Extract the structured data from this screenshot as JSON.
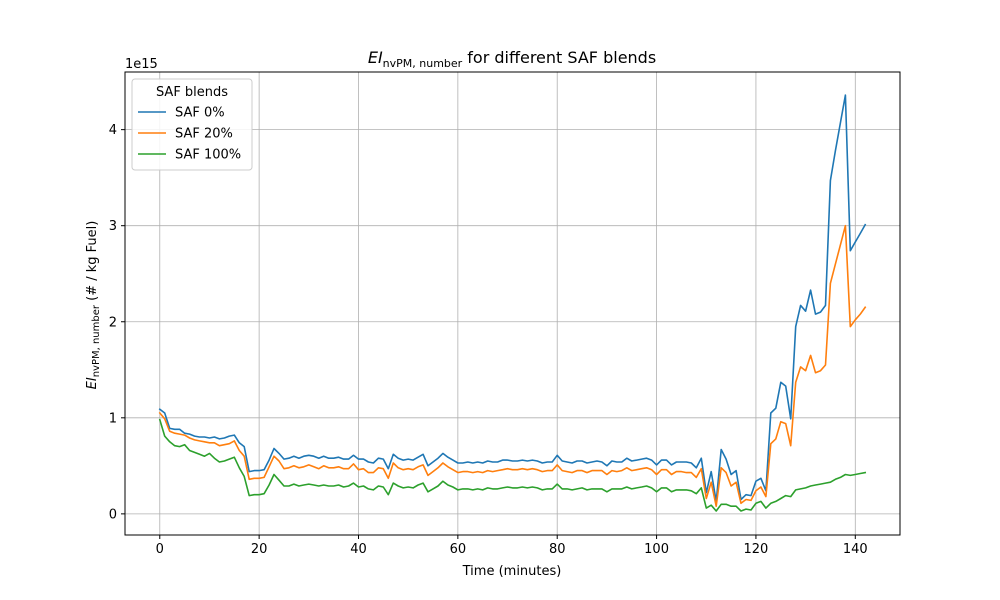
{
  "chart_data": {
    "type": "line",
    "title_main": "EI",
    "title_sub": "nvPM, number",
    "title_rest": " for different SAF blends",
    "xlabel": "Time (minutes)",
    "ylabel_main": "EI",
    "ylabel_sub": "nvPM, number",
    "ylabel_rest": " (# / kg Fuel)",
    "offset_text": "1e15",
    "xlim": [
      -7,
      149
    ],
    "ylim": [
      -0.22,
      4.6
    ],
    "x_ticks": [
      0,
      20,
      40,
      60,
      80,
      100,
      120,
      140
    ],
    "x_tick_labels": [
      "0",
      "20",
      "40",
      "60",
      "80",
      "100",
      "120",
      "140"
    ],
    "y_ticks": [
      0,
      1,
      2,
      3,
      4
    ],
    "y_tick_labels": [
      "0",
      "1",
      "2",
      "3",
      "4"
    ],
    "grid": true,
    "legend": {
      "title": "SAF blends",
      "placement": "upper-left"
    },
    "x": [
      0,
      1,
      2,
      3,
      4,
      5,
      6,
      7,
      8,
      9,
      10,
      11,
      12,
      13,
      14,
      15,
      16,
      17,
      18,
      19,
      20,
      21,
      22,
      23,
      24,
      25,
      26,
      27,
      28,
      29,
      30,
      31,
      32,
      33,
      34,
      35,
      36,
      37,
      38,
      39,
      40,
      41,
      42,
      43,
      44,
      45,
      46,
      47,
      48,
      49,
      50,
      51,
      52,
      53,
      54,
      55,
      56,
      57,
      58,
      59,
      60,
      61,
      62,
      63,
      64,
      65,
      66,
      67,
      68,
      69,
      70,
      71,
      72,
      73,
      74,
      75,
      76,
      77,
      78,
      79,
      80,
      81,
      82,
      83,
      84,
      85,
      86,
      87,
      88,
      89,
      90,
      91,
      92,
      93,
      94,
      95,
      96,
      97,
      98,
      99,
      100,
      101,
      102,
      103,
      104,
      105,
      106,
      107,
      108,
      109,
      110,
      111,
      112,
      113,
      114,
      115,
      116,
      117,
      118,
      119,
      120,
      121,
      122,
      123,
      124,
      125,
      126,
      127,
      128,
      129,
      130,
      131,
      132,
      133,
      134,
      135,
      136,
      137,
      138,
      139,
      140,
      141,
      142
    ],
    "series": [
      {
        "name": "SAF 0%",
        "color": "#1f77b4",
        "values": [
          1.09,
          1.05,
          0.89,
          0.88,
          0.88,
          0.84,
          0.83,
          0.81,
          0.8,
          0.8,
          0.79,
          0.8,
          0.78,
          0.79,
          0.81,
          0.82,
          0.74,
          0.7,
          0.44,
          0.45,
          0.45,
          0.46,
          0.56,
          0.68,
          0.63,
          0.57,
          0.58,
          0.6,
          0.58,
          0.6,
          0.61,
          0.6,
          0.58,
          0.6,
          0.58,
          0.58,
          0.59,
          0.57,
          0.57,
          0.61,
          0.57,
          0.57,
          0.54,
          0.53,
          0.58,
          0.57,
          0.47,
          0.62,
          0.58,
          0.56,
          0.57,
          0.56,
          0.59,
          0.62,
          0.5,
          0.54,
          0.58,
          0.63,
          0.59,
          0.56,
          0.53,
          0.53,
          0.54,
          0.53,
          0.54,
          0.53,
          0.55,
          0.54,
          0.54,
          0.56,
          0.56,
          0.55,
          0.55,
          0.56,
          0.55,
          0.56,
          0.55,
          0.53,
          0.54,
          0.54,
          0.61,
          0.55,
          0.54,
          0.53,
          0.55,
          0.55,
          0.53,
          0.54,
          0.55,
          0.54,
          0.5,
          0.55,
          0.54,
          0.54,
          0.58,
          0.55,
          0.56,
          0.57,
          0.58,
          0.56,
          0.51,
          0.56,
          0.56,
          0.51,
          0.54,
          0.54,
          0.54,
          0.53,
          0.48,
          0.58,
          0.22,
          0.44,
          0.13,
          0.67,
          0.57,
          0.41,
          0.45,
          0.15,
          0.2,
          0.19,
          0.34,
          0.37,
          0.24,
          1.05,
          1.1,
          1.37,
          1.33,
          0.99,
          1.95,
          2.17,
          2.11,
          2.33,
          2.08,
          2.1,
          2.17,
          3.47,
          3.78,
          4.07,
          4.36,
          2.74,
          2.83,
          2.92,
          3.01
        ]
      },
      {
        "name": "SAF 20%",
        "color": "#ff7f0e",
        "values": [
          1.05,
          0.99,
          0.86,
          0.84,
          0.83,
          0.82,
          0.79,
          0.77,
          0.76,
          0.75,
          0.74,
          0.74,
          0.71,
          0.72,
          0.73,
          0.76,
          0.66,
          0.6,
          0.36,
          0.37,
          0.37,
          0.38,
          0.49,
          0.6,
          0.55,
          0.47,
          0.48,
          0.5,
          0.48,
          0.49,
          0.51,
          0.49,
          0.47,
          0.5,
          0.48,
          0.48,
          0.49,
          0.47,
          0.47,
          0.52,
          0.46,
          0.47,
          0.43,
          0.43,
          0.48,
          0.47,
          0.37,
          0.53,
          0.48,
          0.46,
          0.47,
          0.46,
          0.49,
          0.51,
          0.4,
          0.44,
          0.48,
          0.53,
          0.49,
          0.46,
          0.43,
          0.44,
          0.44,
          0.43,
          0.44,
          0.43,
          0.45,
          0.44,
          0.45,
          0.46,
          0.47,
          0.46,
          0.46,
          0.47,
          0.46,
          0.47,
          0.46,
          0.44,
          0.45,
          0.45,
          0.51,
          0.45,
          0.44,
          0.43,
          0.45,
          0.45,
          0.43,
          0.45,
          0.45,
          0.45,
          0.41,
          0.45,
          0.44,
          0.45,
          0.48,
          0.45,
          0.46,
          0.47,
          0.48,
          0.46,
          0.41,
          0.46,
          0.46,
          0.41,
          0.44,
          0.44,
          0.43,
          0.43,
          0.38,
          0.47,
          0.16,
          0.33,
          0.08,
          0.48,
          0.43,
          0.29,
          0.33,
          0.11,
          0.15,
          0.14,
          0.24,
          0.28,
          0.18,
          0.73,
          0.78,
          0.96,
          0.94,
          0.71,
          1.37,
          1.53,
          1.49,
          1.65,
          1.47,
          1.49,
          1.55,
          2.4,
          2.6,
          2.8,
          3.0,
          1.95,
          2.02,
          2.08,
          2.15
        ]
      },
      {
        "name": "SAF 100%",
        "color": "#2ca02c",
        "values": [
          0.98,
          0.81,
          0.75,
          0.71,
          0.7,
          0.72,
          0.66,
          0.64,
          0.62,
          0.6,
          0.63,
          0.58,
          0.54,
          0.55,
          0.57,
          0.59,
          0.48,
          0.39,
          0.19,
          0.2,
          0.2,
          0.21,
          0.3,
          0.41,
          0.35,
          0.29,
          0.29,
          0.31,
          0.29,
          0.3,
          0.31,
          0.3,
          0.29,
          0.3,
          0.29,
          0.29,
          0.3,
          0.28,
          0.29,
          0.32,
          0.28,
          0.29,
          0.26,
          0.25,
          0.29,
          0.28,
          0.2,
          0.32,
          0.29,
          0.27,
          0.28,
          0.27,
          0.3,
          0.32,
          0.23,
          0.26,
          0.29,
          0.34,
          0.3,
          0.28,
          0.25,
          0.26,
          0.26,
          0.25,
          0.26,
          0.25,
          0.27,
          0.26,
          0.26,
          0.27,
          0.28,
          0.27,
          0.27,
          0.28,
          0.27,
          0.28,
          0.27,
          0.25,
          0.26,
          0.26,
          0.31,
          0.26,
          0.26,
          0.25,
          0.26,
          0.27,
          0.25,
          0.26,
          0.26,
          0.26,
          0.23,
          0.26,
          0.26,
          0.26,
          0.28,
          0.26,
          0.27,
          0.28,
          0.29,
          0.27,
          0.23,
          0.27,
          0.27,
          0.23,
          0.25,
          0.25,
          0.25,
          0.24,
          0.21,
          0.27,
          0.06,
          0.09,
          0.03,
          0.1,
          0.1,
          0.08,
          0.08,
          0.03,
          0.05,
          0.04,
          0.11,
          0.13,
          0.06,
          0.11,
          0.13,
          0.16,
          0.19,
          0.18,
          0.25,
          0.26,
          0.27,
          0.29,
          0.3,
          0.31,
          0.32,
          0.33,
          0.36,
          0.38,
          0.41,
          0.4,
          0.41,
          0.42,
          0.43
        ]
      }
    ]
  }
}
